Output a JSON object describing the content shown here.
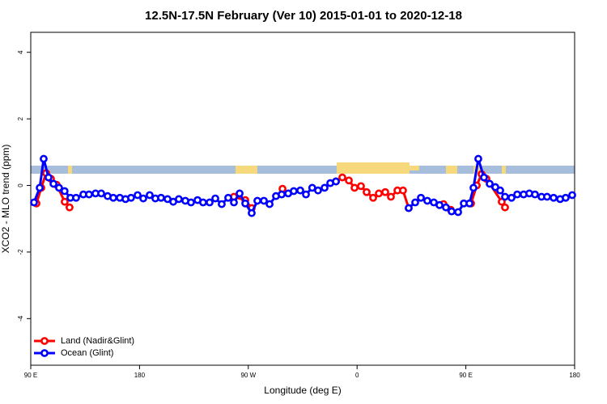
{
  "chart_data": {
    "type": "line",
    "title": "12.5N-17.5N February (Ver 10)   2015-01-01 to 2020-12-18",
    "x_label": "Longitude (deg E)",
    "y_label": "XCO2 - MLO trend (ppm)",
    "xlim": [
      90,
      540
    ],
    "xticks": [
      {
        "value": 90,
        "label": "90 E"
      },
      180,
      {
        "value": 270,
        "label": "90 W"
      },
      {
        "value": 360,
        "label": "0"
      },
      {
        "value": 450,
        "label": "90 E"
      },
      {
        "value": 540,
        "label": "180"
      }
    ],
    "ylim": [
      -5.4,
      4.6
    ],
    "yticks": [
      -4,
      -2,
      0,
      2,
      4
    ],
    "legend": "bottomleft",
    "series": [
      {
        "name": "Land (Nadir&Glint)",
        "color": "#ff0000",
        "x": [
          94.7,
          98.7,
          102.7,
          106.7,
          111.4,
          118.1,
          122.1,
          190,
          258.1,
          267.5,
          272.8,
          285,
          298.3,
          320,
          342.5,
          347.8,
          353.2,
          357.9,
          363.2,
          367.9,
          373.3,
          378,
          383.3,
          388,
          393.4,
          398,
          402.7,
          420,
          431.5,
          437.5,
          445,
          454.3,
          459,
          463,
          467,
          479.7,
          482.4
        ],
        "values": [
          -0.54,
          -0.07,
          0.37,
          0.2,
          0.02,
          -0.49,
          -0.66,
          null,
          -0.34,
          -0.44,
          -0.68,
          null,
          -0.1,
          null,
          0.12,
          0.24,
          0.15,
          -0.07,
          -0.02,
          -0.2,
          -0.37,
          -0.24,
          -0.2,
          -0.34,
          -0.15,
          -0.15,
          -0.68,
          null,
          -0.56,
          -0.73,
          null,
          -0.54,
          0,
          0.34,
          0.2,
          -0.49,
          -0.66
        ]
      },
      {
        "name": "Ocean (Glint)",
        "color": "#0000ff",
        "x": [
          92.7,
          97.4,
          100.7,
          104.7,
          108.8,
          113.4,
          118,
          122.8,
          127.5,
          133.5,
          138.2,
          143.6,
          148.3,
          153.6,
          158.3,
          163.7,
          168.4,
          173,
          178.4,
          183.1,
          188.4,
          193.1,
          197.8,
          203.2,
          207.9,
          212.5,
          217.9,
          222.6,
          228,
          232.6,
          238,
          242.7,
          248,
          253.4,
          258.1,
          262.8,
          267.5,
          272.8,
          277.5,
          282.9,
          287.6,
          292.9,
          297.6,
          303,
          307.6,
          313,
          317.7,
          322.9,
          327.7,
          333.1,
          337.8,
          342.5,
          370,
          402.7,
          408.1,
          412.8,
          418.1,
          423.5,
          428.2,
          433.5,
          438.2,
          443.6,
          448.3,
          453,
          456.3,
          460.3,
          465,
          469.7,
          474.4,
          478.4,
          482.4,
          487.8,
          492.5,
          497.8,
          502.5,
          507.2,
          512.6,
          517.2,
          522.6,
          528,
          532.6,
          538
        ],
        "values": [
          -0.51,
          -0.07,
          0.8,
          0.24,
          0.05,
          -0.07,
          -0.17,
          -0.37,
          -0.37,
          -0.27,
          -0.27,
          -0.24,
          -0.24,
          -0.32,
          -0.37,
          -0.37,
          -0.41,
          -0.37,
          -0.29,
          -0.39,
          -0.29,
          -0.39,
          -0.37,
          -0.41,
          -0.49,
          -0.41,
          -0.46,
          -0.51,
          -0.44,
          -0.51,
          -0.51,
          -0.39,
          -0.56,
          -0.37,
          -0.51,
          -0.24,
          -0.54,
          -0.83,
          -0.46,
          -0.46,
          -0.56,
          -0.32,
          -0.27,
          -0.24,
          -0.17,
          -0.15,
          -0.27,
          -0.07,
          -0.15,
          -0.07,
          0.07,
          0.12,
          null,
          -0.68,
          -0.51,
          -0.37,
          -0.46,
          -0.51,
          -0.59,
          -0.66,
          -0.78,
          -0.8,
          -0.54,
          -0.54,
          -0.07,
          0.8,
          0.24,
          0.05,
          -0.05,
          -0.15,
          -0.34,
          -0.37,
          -0.27,
          -0.27,
          -0.24,
          -0.27,
          -0.34,
          -0.34,
          -0.37,
          -0.41,
          -0.37,
          -0.29
        ]
      }
    ]
  }
}
